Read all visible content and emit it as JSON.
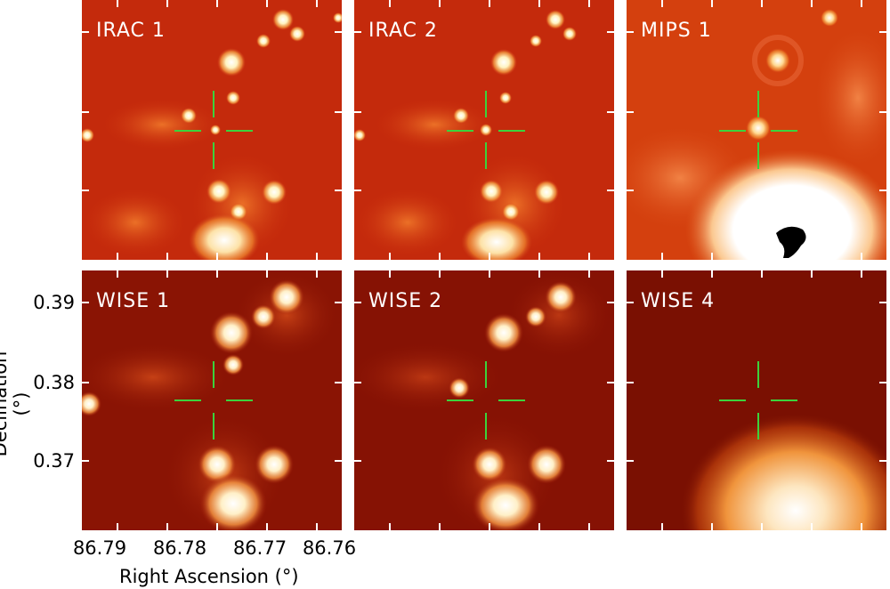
{
  "panels": [
    {
      "id": "irac1",
      "label": "IRAC 1",
      "background": "#c8280a"
    },
    {
      "id": "irac2",
      "label": "IRAC 2",
      "background": "#c8280a"
    },
    {
      "id": "mips1",
      "label": "MIPS 1",
      "background": "#d64210"
    },
    {
      "id": "wise1",
      "label": "WISE 1",
      "background": "#8a1204"
    },
    {
      "id": "wise2",
      "label": "WISE 2",
      "background": "#8a1204"
    },
    {
      "id": "wise4",
      "label": "WISE 4",
      "background": "#7a1002"
    }
  ],
  "axes": {
    "xlabel": "Right Ascension (°)",
    "ylabel": "Declination (°)",
    "xticks": [
      "86.79",
      "86.78",
      "86.77",
      "86.76"
    ],
    "yticks": [
      "0.39",
      "0.38",
      "0.37"
    ]
  },
  "colors": {
    "crosshair": "#3cd23c",
    "source": "#fff6e6"
  }
}
